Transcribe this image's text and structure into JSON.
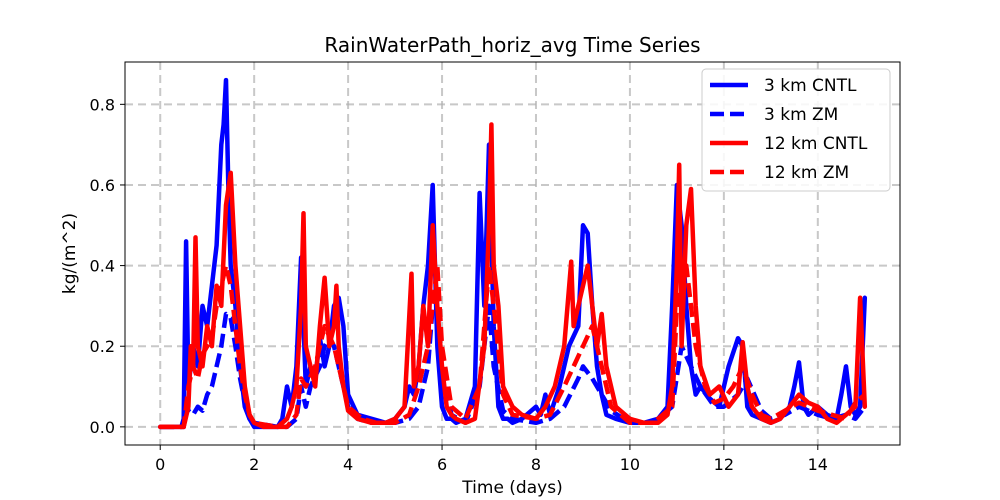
{
  "chart_data": {
    "type": "line",
    "title": "RainWaterPath_horiz_avg Time Series",
    "xlabel": "Time (days)",
    "ylabel": "kg/(m^2)",
    "xlim": [
      -0.75,
      15.75
    ],
    "ylim": [
      -0.045,
      0.905
    ],
    "xticks": [
      0,
      2,
      4,
      6,
      8,
      10,
      12,
      14
    ],
    "yticks": [
      0.0,
      0.2,
      0.4,
      0.6,
      0.8
    ],
    "grid": true,
    "legend_position": "top-right",
    "series": [
      {
        "name": "3 km CNTL",
        "color": "#0000ff",
        "dash": "solid",
        "x": [
          0,
          0.45,
          0.5,
          0.55,
          0.6,
          0.7,
          0.8,
          0.9,
          1.0,
          1.1,
          1.2,
          1.3,
          1.35,
          1.4,
          1.45,
          1.5,
          1.6,
          1.7,
          1.8,
          1.9,
          2.0,
          2.1,
          2.2,
          2.5,
          2.6,
          2.7,
          2.8,
          2.9,
          3.0,
          3.1,
          3.2,
          3.3,
          3.4,
          3.5,
          3.6,
          3.7,
          3.8,
          3.9,
          4.0,
          4.2,
          4.5,
          4.8,
          5.0,
          5.2,
          5.3,
          5.4,
          5.5,
          5.6,
          5.7,
          5.8,
          5.9,
          6.0,
          6.1,
          6.2,
          6.3,
          6.5,
          6.7,
          6.8,
          6.9,
          7.0,
          7.1,
          7.2,
          7.3,
          7.4,
          7.5,
          7.7,
          8.0,
          8.1,
          8.2,
          8.3,
          8.5,
          8.7,
          8.9,
          9.0,
          9.1,
          9.2,
          9.3,
          9.4,
          9.5,
          9.7,
          10.0,
          10.3,
          10.6,
          10.8,
          10.9,
          11.0,
          11.1,
          11.2,
          11.3,
          11.4,
          11.5,
          11.7,
          11.9,
          12.1,
          12.3,
          12.4,
          12.5,
          12.6,
          12.8,
          13.0,
          13.2,
          13.4,
          13.5,
          13.6,
          13.7,
          13.8,
          14.0,
          14.2,
          14.4,
          14.5,
          14.6,
          14.7,
          14.8,
          14.9,
          15.0
        ],
        "y": [
          0.0,
          0.0,
          0.02,
          0.46,
          0.1,
          0.2,
          0.15,
          0.3,
          0.25,
          0.35,
          0.45,
          0.7,
          0.75,
          0.86,
          0.6,
          0.4,
          0.3,
          0.15,
          0.05,
          0.02,
          0.0,
          0.0,
          0.0,
          0.0,
          0.02,
          0.1,
          0.05,
          0.15,
          0.42,
          0.1,
          0.15,
          0.12,
          0.22,
          0.15,
          0.2,
          0.3,
          0.32,
          0.25,
          0.08,
          0.03,
          0.02,
          0.01,
          0.02,
          0.05,
          0.1,
          0.08,
          0.15,
          0.3,
          0.4,
          0.6,
          0.2,
          0.05,
          0.02,
          0.02,
          0.01,
          0.02,
          0.1,
          0.58,
          0.3,
          0.7,
          0.25,
          0.05,
          0.02,
          0.02,
          0.01,
          0.02,
          0.05,
          0.03,
          0.08,
          0.03,
          0.1,
          0.2,
          0.25,
          0.5,
          0.48,
          0.3,
          0.15,
          0.08,
          0.03,
          0.02,
          0.01,
          0.01,
          0.02,
          0.05,
          0.3,
          0.6,
          0.5,
          0.3,
          0.15,
          0.08,
          0.1,
          0.07,
          0.05,
          0.15,
          0.22,
          0.2,
          0.05,
          0.03,
          0.02,
          0.01,
          0.02,
          0.05,
          0.1,
          0.16,
          0.05,
          0.03,
          0.05,
          0.03,
          0.02,
          0.08,
          0.15,
          0.05,
          0.03,
          0.05,
          0.32
        ]
      },
      {
        "name": "3 km ZM",
        "color": "#0000ff",
        "dash": "dashed",
        "x": [
          0,
          0.5,
          0.55,
          0.6,
          0.7,
          0.8,
          0.9,
          1.0,
          1.1,
          1.2,
          1.3,
          1.4,
          1.5,
          1.6,
          1.7,
          1.8,
          1.9,
          2.0,
          2.5,
          2.7,
          2.9,
          3.0,
          3.1,
          3.2,
          3.4,
          3.5,
          3.6,
          3.7,
          3.8,
          4.0,
          4.2,
          4.5,
          5.0,
          5.3,
          5.5,
          5.7,
          5.8,
          5.9,
          6.0,
          6.2,
          6.5,
          6.8,
          7.0,
          7.1,
          7.3,
          7.5,
          8.0,
          8.3,
          8.6,
          8.9,
          9.0,
          9.2,
          9.4,
          9.6,
          10.0,
          10.5,
          10.9,
          11.1,
          11.3,
          11.5,
          11.8,
          12.0,
          12.3,
          12.5,
          12.8,
          13.0,
          13.3,
          13.6,
          13.8,
          14.0,
          14.3,
          14.6,
          14.8,
          15.0
        ],
        "y": [
          0.0,
          0.0,
          0.08,
          0.04,
          0.03,
          0.05,
          0.04,
          0.08,
          0.1,
          0.15,
          0.2,
          0.28,
          0.27,
          0.2,
          0.12,
          0.06,
          0.02,
          0.01,
          0.0,
          0.0,
          0.02,
          0.1,
          0.05,
          0.1,
          0.15,
          0.2,
          0.22,
          0.2,
          0.15,
          0.05,
          0.02,
          0.01,
          0.01,
          0.02,
          0.05,
          0.15,
          0.3,
          0.35,
          0.15,
          0.03,
          0.01,
          0.1,
          0.3,
          0.15,
          0.04,
          0.02,
          0.01,
          0.02,
          0.05,
          0.12,
          0.15,
          0.12,
          0.08,
          0.04,
          0.01,
          0.01,
          0.05,
          0.2,
          0.15,
          0.1,
          0.05,
          0.05,
          0.08,
          0.12,
          0.04,
          0.02,
          0.03,
          0.05,
          0.04,
          0.03,
          0.02,
          0.03,
          0.02,
          0.05
        ]
      },
      {
        "name": "12 km CNTL",
        "color": "#ff0000",
        "dash": "solid",
        "x": [
          0,
          0.5,
          0.6,
          0.65,
          0.7,
          0.75,
          0.8,
          0.9,
          1.0,
          1.1,
          1.2,
          1.3,
          1.4,
          1.5,
          1.6,
          1.7,
          1.8,
          1.9,
          2.0,
          2.2,
          2.5,
          2.7,
          2.8,
          2.9,
          3.0,
          3.05,
          3.1,
          3.2,
          3.3,
          3.4,
          3.5,
          3.6,
          3.7,
          3.75,
          3.8,
          3.9,
          4.0,
          4.2,
          4.5,
          4.8,
          5.0,
          5.2,
          5.35,
          5.4,
          5.5,
          5.6,
          5.7,
          5.8,
          5.9,
          6.0,
          6.1,
          6.2,
          6.3,
          6.5,
          6.7,
          6.9,
          7.0,
          7.05,
          7.1,
          7.2,
          7.3,
          7.5,
          7.7,
          8.0,
          8.2,
          8.4,
          8.6,
          8.75,
          8.8,
          8.9,
          9.0,
          9.1,
          9.2,
          9.3,
          9.4,
          9.5,
          9.7,
          10.0,
          10.3,
          10.6,
          10.8,
          10.9,
          11.0,
          11.05,
          11.1,
          11.2,
          11.3,
          11.4,
          11.5,
          11.7,
          11.9,
          12.1,
          12.3,
          12.4,
          12.5,
          12.6,
          12.8,
          13.0,
          13.2,
          13.4,
          13.6,
          13.8,
          14.0,
          14.2,
          14.4,
          14.6,
          14.8,
          14.9,
          15.0
        ],
        "y": [
          0.0,
          0.0,
          0.05,
          0.2,
          0.15,
          0.47,
          0.2,
          0.15,
          0.25,
          0.2,
          0.35,
          0.3,
          0.55,
          0.63,
          0.4,
          0.25,
          0.1,
          0.03,
          0.01,
          0.0,
          0.0,
          0.02,
          0.05,
          0.1,
          0.3,
          0.53,
          0.2,
          0.15,
          0.1,
          0.25,
          0.37,
          0.2,
          0.25,
          0.35,
          0.2,
          0.1,
          0.04,
          0.02,
          0.01,
          0.01,
          0.02,
          0.05,
          0.38,
          0.1,
          0.15,
          0.3,
          0.2,
          0.5,
          0.3,
          0.15,
          0.05,
          0.03,
          0.02,
          0.01,
          0.02,
          0.2,
          0.5,
          0.75,
          0.4,
          0.3,
          0.1,
          0.05,
          0.03,
          0.02,
          0.05,
          0.1,
          0.2,
          0.41,
          0.25,
          0.3,
          0.35,
          0.4,
          0.3,
          0.2,
          0.28,
          0.15,
          0.05,
          0.02,
          0.01,
          0.01,
          0.03,
          0.1,
          0.4,
          0.65,
          0.2,
          0.5,
          0.59,
          0.3,
          0.15,
          0.08,
          0.1,
          0.05,
          0.08,
          0.21,
          0.1,
          0.05,
          0.02,
          0.01,
          0.02,
          0.05,
          0.08,
          0.06,
          0.05,
          0.02,
          0.01,
          0.03,
          0.05,
          0.32,
          0.05
        ]
      },
      {
        "name": "12 km ZM",
        "color": "#ff0000",
        "dash": "dashed",
        "x": [
          0,
          0.5,
          0.6,
          0.7,
          0.8,
          0.9,
          1.0,
          1.1,
          1.2,
          1.3,
          1.4,
          1.5,
          1.6,
          1.7,
          1.8,
          1.9,
          2.0,
          2.5,
          2.7,
          2.9,
          3.0,
          3.1,
          3.3,
          3.5,
          3.7,
          3.8,
          4.0,
          4.3,
          4.6,
          5.0,
          5.3,
          5.5,
          5.7,
          5.9,
          6.0,
          6.2,
          6.5,
          6.8,
          7.0,
          7.1,
          7.3,
          7.5,
          8.0,
          8.3,
          8.6,
          8.8,
          9.0,
          9.2,
          9.4,
          9.6,
          10.0,
          10.5,
          10.9,
          11.0,
          11.2,
          11.4,
          11.6,
          11.8,
          12.0,
          12.2,
          12.4,
          12.6,
          12.8,
          13.0,
          13.3,
          13.6,
          13.8,
          14.0,
          14.3,
          14.6,
          14.8,
          15.0
        ],
        "y": [
          0.0,
          0.0,
          0.1,
          0.15,
          0.12,
          0.18,
          0.2,
          0.22,
          0.3,
          0.35,
          0.4,
          0.35,
          0.25,
          0.15,
          0.08,
          0.03,
          0.01,
          0.0,
          0.0,
          0.03,
          0.12,
          0.1,
          0.15,
          0.25,
          0.2,
          0.15,
          0.05,
          0.02,
          0.01,
          0.01,
          0.03,
          0.1,
          0.2,
          0.4,
          0.2,
          0.05,
          0.02,
          0.1,
          0.4,
          0.3,
          0.08,
          0.03,
          0.02,
          0.03,
          0.1,
          0.15,
          0.2,
          0.25,
          0.15,
          0.05,
          0.01,
          0.01,
          0.05,
          0.3,
          0.4,
          0.2,
          0.1,
          0.06,
          0.07,
          0.1,
          0.15,
          0.08,
          0.03,
          0.02,
          0.04,
          0.06,
          0.05,
          0.04,
          0.03,
          0.02,
          0.06,
          0.08
        ]
      }
    ]
  }
}
